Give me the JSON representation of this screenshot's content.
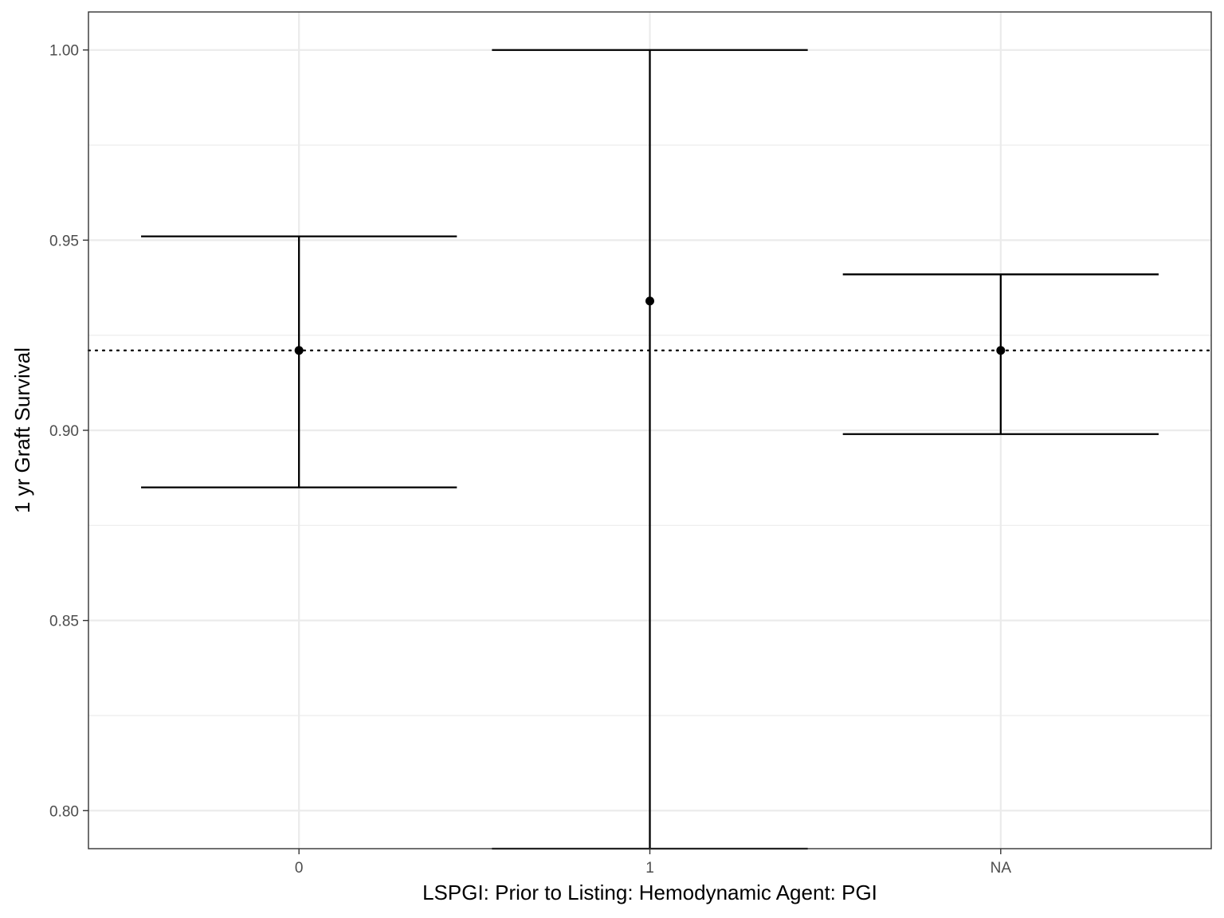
{
  "chart_data": {
    "type": "errorbar",
    "xlabel": "LSPGI: Prior to Listing: Hemodynamic Agent: PGI",
    "ylabel": "1 yr Graft Survival",
    "categories": [
      "0",
      "1",
      "NA"
    ],
    "estimate": [
      0.921,
      0.934,
      0.921
    ],
    "lower": [
      0.885,
      0.79,
      0.899
    ],
    "upper": [
      0.951,
      1.0,
      0.941
    ],
    "reference_line": 0.921,
    "ylim": [
      0.79,
      1.01
    ],
    "yticks": [
      0.8,
      0.85,
      0.9,
      0.95,
      1.0
    ],
    "ytick_labels": [
      "0.80",
      "0.85",
      "0.90",
      "0.95",
      "1.00"
    ],
    "grid": true,
    "colors": {
      "mark": "#000000",
      "grid": "#ebebeb",
      "panel_border": "#333333"
    }
  }
}
